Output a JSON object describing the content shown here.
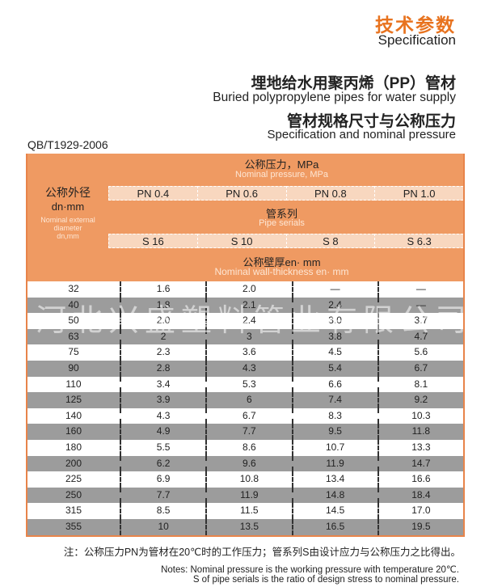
{
  "header": {
    "title_zh": "技术参数",
    "title_en": "Specification",
    "product_zh": "埋地给水用聚丙烯（PP）管材",
    "product_en": "Buried polypropylene pipes for water supply",
    "section_zh": "管材规格尺寸与公称压力",
    "section_en": "Specification and nominal pressure",
    "standard": "QB/T1929-2006"
  },
  "table": {
    "outer_zh": "公称外径",
    "outer_unit": "dn·mm",
    "outer_en1": "Nominal external",
    "outer_en2": "diameter",
    "outer_en3": "dn,mm",
    "pressure_zh": "公称压力，MPa",
    "pressure_en": "Nominal pressure, MPa",
    "pn": [
      "PN 0.4",
      "PN 0.6",
      "PN 0.8",
      "PN 1.0"
    ],
    "series_zh": "管系列",
    "series_en": "Pipe serials",
    "s": [
      "S 16",
      "S 10",
      "S 8",
      "S 6.3"
    ],
    "wall_zh": "公称壁厚en· mm",
    "wall_en": "Nominal wall-thickness  en· mm",
    "rows": [
      [
        "32",
        "1.6",
        "2.0",
        "—",
        "—"
      ],
      [
        "40",
        "1.8",
        "2.1",
        "2.4",
        "—"
      ],
      [
        "50",
        "2.0",
        "2.4",
        "3.0",
        "3.7"
      ],
      [
        "63",
        "2",
        "3",
        "3.8",
        "4.7"
      ],
      [
        "75",
        "2.3",
        "3.6",
        "4.5",
        "5.6"
      ],
      [
        "90",
        "2.8",
        "4.3",
        "5.4",
        "6.7"
      ],
      [
        "110",
        "3.4",
        "5.3",
        "6.6",
        "8.1"
      ],
      [
        "125",
        "3.9",
        "6",
        "7.4",
        "9.2"
      ],
      [
        "140",
        "4.3",
        "6.7",
        "8.3",
        "10.3"
      ],
      [
        "160",
        "4.9",
        "7.7",
        "9.5",
        "11.8"
      ],
      [
        "180",
        "5.5",
        "8.6",
        "10.7",
        "13.3"
      ],
      [
        "200",
        "6.2",
        "9.6",
        "11.9",
        "14.7"
      ],
      [
        "225",
        "6.9",
        "10.8",
        "13.4",
        "16.6"
      ],
      [
        "250",
        "7.7",
        "11.9",
        "14.8",
        "18.4"
      ],
      [
        "315",
        "8.5",
        "11.5",
        "14.5",
        "17.0"
      ],
      [
        "355",
        "10",
        "13.5",
        "16.5",
        "19.5"
      ]
    ]
  },
  "watermark": "河北兴盛塑料管业有限公司",
  "notes": {
    "zh": "注：公称压力PN为管材在20℃时的工作压力；管系列S由设计应力与公称压力之比得出。",
    "en1": "Notes: Nominal pressure is the working pressure with temperature 20℃.",
    "en2": "S of pipe serials is the ratio of design stress to nominal pressure."
  },
  "colors": {
    "accent": "#e8731f",
    "header_bg": "#ef9a62",
    "band_bg": "#f8d7bf",
    "stripe": "#9c9c9c"
  }
}
